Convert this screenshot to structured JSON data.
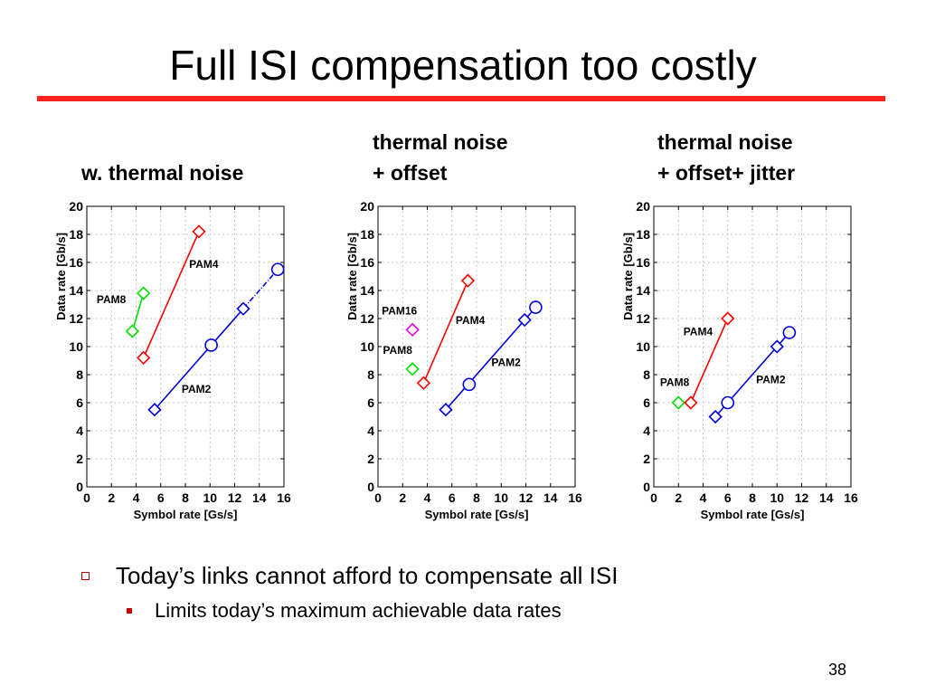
{
  "slide": {
    "title": "Full ISI compensation too costly",
    "page_number": "38",
    "bullets": {
      "level1": "Today’s links cannot afford to compensate all ISI",
      "level2": "Limits today’s maximum achievable data rates"
    }
  },
  "colors": {
    "rule": "#ff2020",
    "red": "#ff0000",
    "green": "#00dd00",
    "blue": "#0000dd",
    "magenta": "#e000e0"
  },
  "chart_data": [
    {
      "type": "scatter",
      "heading": [
        "w. thermal noise"
      ],
      "xlabel": "Symbol rate [Gs/s]",
      "ylabel": "Data rate [Gb/s]",
      "xlim": [
        0,
        16
      ],
      "ylim": [
        0,
        20
      ],
      "xticks": [
        "0",
        "2",
        "4",
        "6",
        "8",
        "10",
        "12",
        "14",
        "16"
      ],
      "yticks": [
        "0",
        "2",
        "4",
        "6",
        "8",
        "10",
        "12",
        "14",
        "16",
        "18",
        "20"
      ],
      "grid": true,
      "series": [
        {
          "name": "PAM8",
          "color": "#00dd00",
          "label_at": [
            0.8,
            13.1
          ],
          "points": [
            {
              "x": 3.7,
              "y": 11.1,
              "m": "diamond"
            },
            {
              "x": 4.6,
              "y": 13.8,
              "m": "diamond"
            }
          ],
          "lines": [
            [
              0,
              1,
              "solid"
            ]
          ]
        },
        {
          "name": "PAM4",
          "color": "#ff0000",
          "label_at": [
            8.3,
            15.6
          ],
          "points": [
            {
              "x": 4.6,
              "y": 9.2,
              "m": "diamond"
            },
            {
              "x": 9.1,
              "y": 18.2,
              "m": "diamond"
            }
          ],
          "lines": [
            [
              0,
              1,
              "solid"
            ]
          ]
        },
        {
          "name": "PAM2",
          "color": "#0000dd",
          "label_at": [
            7.7,
            6.7
          ],
          "points": [
            {
              "x": 5.5,
              "y": 5.5,
              "m": "diamond"
            },
            {
              "x": 10.1,
              "y": 10.1,
              "m": "circle"
            },
            {
              "x": 12.7,
              "y": 12.7,
              "m": "diamond"
            },
            {
              "x": 15.5,
              "y": 15.5,
              "m": "circle"
            }
          ],
          "lines": [
            [
              0,
              2,
              "solid"
            ],
            [
              2,
              3,
              "dashdot"
            ]
          ]
        }
      ]
    },
    {
      "type": "scatter",
      "heading": [
        "thermal noise",
        "+ offset"
      ],
      "xlabel": "Symbol rate [Gs/s]",
      "ylabel": "Data rate [Gb/s]",
      "xlim": [
        0,
        16
      ],
      "ylim": [
        0,
        20
      ],
      "xticks": [
        "0",
        "2",
        "4",
        "6",
        "8",
        "10",
        "12",
        "14",
        "16"
      ],
      "yticks": [
        "0",
        "2",
        "4",
        "6",
        "8",
        "10",
        "12",
        "14",
        "16",
        "18",
        "20"
      ],
      "grid": true,
      "series": [
        {
          "name": "PAM16",
          "color": "#e000e0",
          "label_at": [
            0.3,
            12.3
          ],
          "points": [
            {
              "x": 2.8,
              "y": 11.2,
              "m": "diamond"
            }
          ],
          "lines": []
        },
        {
          "name": "PAM8",
          "color": "#00dd00",
          "label_at": [
            0.4,
            9.5
          ],
          "points": [
            {
              "x": 2.8,
              "y": 8.4,
              "m": "diamond"
            }
          ],
          "lines": []
        },
        {
          "name": "PAM4",
          "color": "#ff0000",
          "label_at": [
            6.3,
            11.6
          ],
          "points": [
            {
              "x": 3.7,
              "y": 7.4,
              "m": "diamond"
            },
            {
              "x": 7.3,
              "y": 14.7,
              "m": "diamond"
            }
          ],
          "lines": [
            [
              0,
              1,
              "solid"
            ]
          ]
        },
        {
          "name": "PAM2",
          "color": "#0000dd",
          "label_at": [
            9.2,
            8.6
          ],
          "points": [
            {
              "x": 5.5,
              "y": 5.5,
              "m": "diamond"
            },
            {
              "x": 7.4,
              "y": 7.3,
              "m": "circle"
            },
            {
              "x": 11.9,
              "y": 11.9,
              "m": "diamond"
            },
            {
              "x": 12.8,
              "y": 12.8,
              "m": "circle"
            }
          ],
          "lines": [
            [
              0,
              3,
              "solid"
            ]
          ]
        }
      ]
    },
    {
      "type": "scatter",
      "heading": [
        "thermal noise",
        "+ offset+ jitter"
      ],
      "xlabel": "Symbol rate [Gs/s]",
      "ylabel": "Data rate [Gb/s]",
      "xlim": [
        0,
        16
      ],
      "ylim": [
        0,
        20
      ],
      "xticks": [
        "0",
        "2",
        "4",
        "6",
        "8",
        "10",
        "12",
        "14",
        "16"
      ],
      "yticks": [
        "0",
        "2",
        "4",
        "6",
        "8",
        "10",
        "12",
        "14",
        "16",
        "18",
        "20"
      ],
      "grid": true,
      "series": [
        {
          "name": "PAM8",
          "color": "#00dd00",
          "label_at": [
            0.5,
            7.2
          ],
          "points": [
            {
              "x": 2.0,
              "y": 6.0,
              "m": "diamond"
            }
          ],
          "lines": []
        },
        {
          "name": "PAM4",
          "color": "#ff0000",
          "label_at": [
            2.4,
            10.8
          ],
          "points": [
            {
              "x": 3.0,
              "y": 6.0,
              "m": "diamond"
            },
            {
              "x": 6.0,
              "y": 12.0,
              "m": "diamond"
            }
          ],
          "lines": [
            [
              0,
              1,
              "solid"
            ]
          ]
        },
        {
          "name": "PAM2",
          "color": "#0000dd",
          "label_at": [
            8.3,
            7.4
          ],
          "points": [
            {
              "x": 5.0,
              "y": 5.0,
              "m": "diamond"
            },
            {
              "x": 6.0,
              "y": 6.0,
              "m": "circle"
            },
            {
              "x": 10.0,
              "y": 10.0,
              "m": "diamond"
            },
            {
              "x": 11.0,
              "y": 11.0,
              "m": "circle"
            }
          ],
          "lines": [
            [
              0,
              3,
              "solid"
            ]
          ]
        }
      ]
    }
  ]
}
